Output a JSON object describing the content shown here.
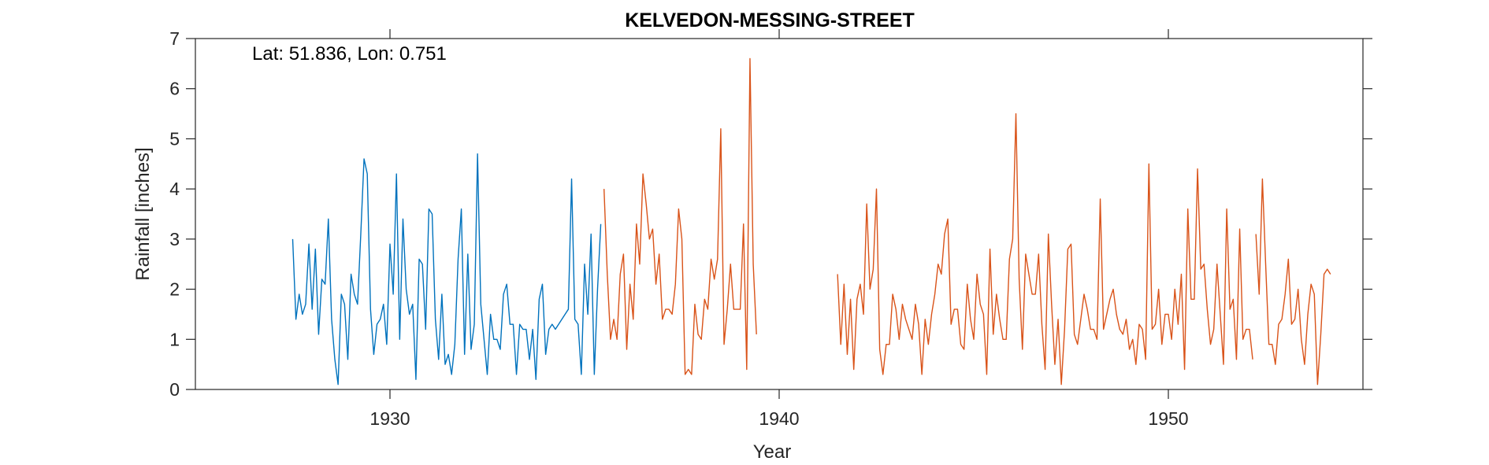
{
  "chart_data": {
    "type": "line",
    "title": "KELVEDON-MESSING-STREET",
    "xlabel": "Year",
    "ylabel": "Rainfall [inches]",
    "annotation": "Lat: 51.836, Lon: 0.751",
    "xlim": [
      1925,
      1955
    ],
    "ylim": [
      0,
      7
    ],
    "xticks": [
      1930,
      1940,
      1950
    ],
    "yticks": [
      0,
      1,
      2,
      3,
      4,
      5,
      6,
      7
    ],
    "grid": false,
    "colors": {
      "series1": "#0072BD",
      "series2": "#D95319"
    },
    "series": [
      {
        "color": "#0072BD",
        "segments": [
          {
            "x_start": 1927.5,
            "step": 0.0833333,
            "values": [
              3.0,
              1.4,
              1.9,
              1.5,
              1.7,
              2.9,
              1.6,
              2.8,
              1.1,
              2.2,
              2.1,
              3.4,
              1.4,
              0.6,
              0.1,
              1.9,
              1.7,
              0.6,
              2.3,
              1.9,
              1.7,
              3.1,
              4.6,
              4.3,
              1.6,
              0.7,
              1.3,
              1.4,
              1.7,
              0.9,
              2.9,
              1.9,
              4.3,
              1.0,
              3.4,
              2.0,
              1.5,
              1.7,
              0.2,
              2.6,
              2.5,
              1.2,
              3.6,
              3.5,
              1.4,
              0.6,
              1.9,
              0.5,
              0.7,
              0.3,
              0.9,
              2.6,
              3.6,
              0.7,
              2.7,
              0.8,
              1.3,
              4.7,
              1.7,
              1.0,
              0.3,
              1.5,
              1.0,
              1.0,
              0.8,
              1.9,
              2.1,
              1.3,
              1.3,
              0.3,
              1.3,
              1.2,
              1.2,
              0.6,
              1.2,
              0.2,
              1.8,
              2.1,
              0.7,
              1.2,
              1.3,
              1.2,
              1.3,
              1.4,
              1.5,
              1.6,
              4.2,
              1.4,
              1.3,
              0.3,
              2.5,
              1.5,
              3.1,
              0.3,
              2.0,
              3.3
            ]
          }
        ]
      },
      {
        "color": "#D95319",
        "segments": [
          {
            "x_start": 1935.5,
            "step": 0.0833333,
            "values": [
              4.0,
              2.3,
              1.0,
              1.4,
              1.0,
              2.3,
              2.7,
              0.8,
              2.1,
              1.4,
              3.3,
              2.5,
              4.3,
              3.7,
              3.0,
              3.2,
              2.1,
              2.7,
              1.4,
              1.6,
              1.6,
              1.5,
              2.1,
              3.6,
              3.0,
              0.3,
              0.4,
              0.3,
              1.7,
              1.1,
              1.0,
              1.8,
              1.6,
              2.6,
              2.2,
              2.6,
              5.2,
              0.9,
              1.6,
              2.5,
              1.6,
              1.6,
              1.6,
              3.3,
              0.4,
              6.6,
              2.5,
              1.1
            ]
          },
          {
            "x_start": 1941.5,
            "step": 0.0833333,
            "values": [
              2.3,
              0.9,
              2.1,
              0.7,
              1.8,
              0.4,
              1.8,
              2.1,
              1.5,
              3.7,
              2.0,
              2.4,
              4.0,
              0.8,
              0.3,
              0.9,
              0.9,
              1.9,
              1.6,
              1.0,
              1.7,
              1.4,
              1.2,
              1.0,
              1.7,
              1.3,
              0.3,
              1.4,
              0.9,
              1.5,
              1.9,
              2.5,
              2.3,
              3.1,
              3.4,
              1.3,
              1.6,
              1.6,
              0.9,
              0.8,
              2.1,
              1.4,
              1.0,
              2.3,
              1.7,
              1.5,
              0.3,
              2.8,
              1.1,
              1.9,
              1.4,
              1.0,
              1.0,
              2.6,
              3.0,
              5.5,
              2.2,
              0.8,
              2.7,
              2.3,
              1.9,
              1.9,
              2.7,
              1.3,
              0.4,
              3.1,
              1.7,
              0.5,
              1.4,
              0.1,
              1.2,
              2.8,
              2.9,
              1.1,
              0.9,
              1.4,
              1.9,
              1.6,
              1.2,
              1.2,
              1.0,
              3.8,
              1.2,
              1.5,
              1.8,
              2.0,
              1.5,
              1.2,
              1.1,
              1.4,
              0.8,
              1.0,
              0.5,
              1.3,
              1.2,
              0.6,
              4.5,
              1.2,
              1.3,
              2.0,
              0.9,
              1.5,
              1.5,
              1.0,
              2.0,
              1.3,
              2.3,
              0.4,
              3.6,
              1.8,
              1.8,
              4.4,
              2.4,
              2.5,
              1.6,
              0.9,
              1.2,
              2.5,
              1.5,
              0.5,
              3.6,
              1.6,
              1.8,
              0.6,
              3.2,
              1.0,
              1.2,
              1.2,
              0.6
            ]
          },
          {
            "x_start": 1952.25,
            "step": 0.0833333,
            "values": [
              3.1,
              1.9,
              4.2,
              2.5,
              0.9,
              0.9,
              0.5,
              1.3,
              1.4,
              1.9,
              2.6,
              1.3,
              1.4,
              2.0,
              1.0,
              0.5,
              1.5,
              2.1,
              1.9,
              0.1,
              1.1,
              2.3,
              2.4,
              2.3
            ]
          }
        ]
      }
    ]
  }
}
